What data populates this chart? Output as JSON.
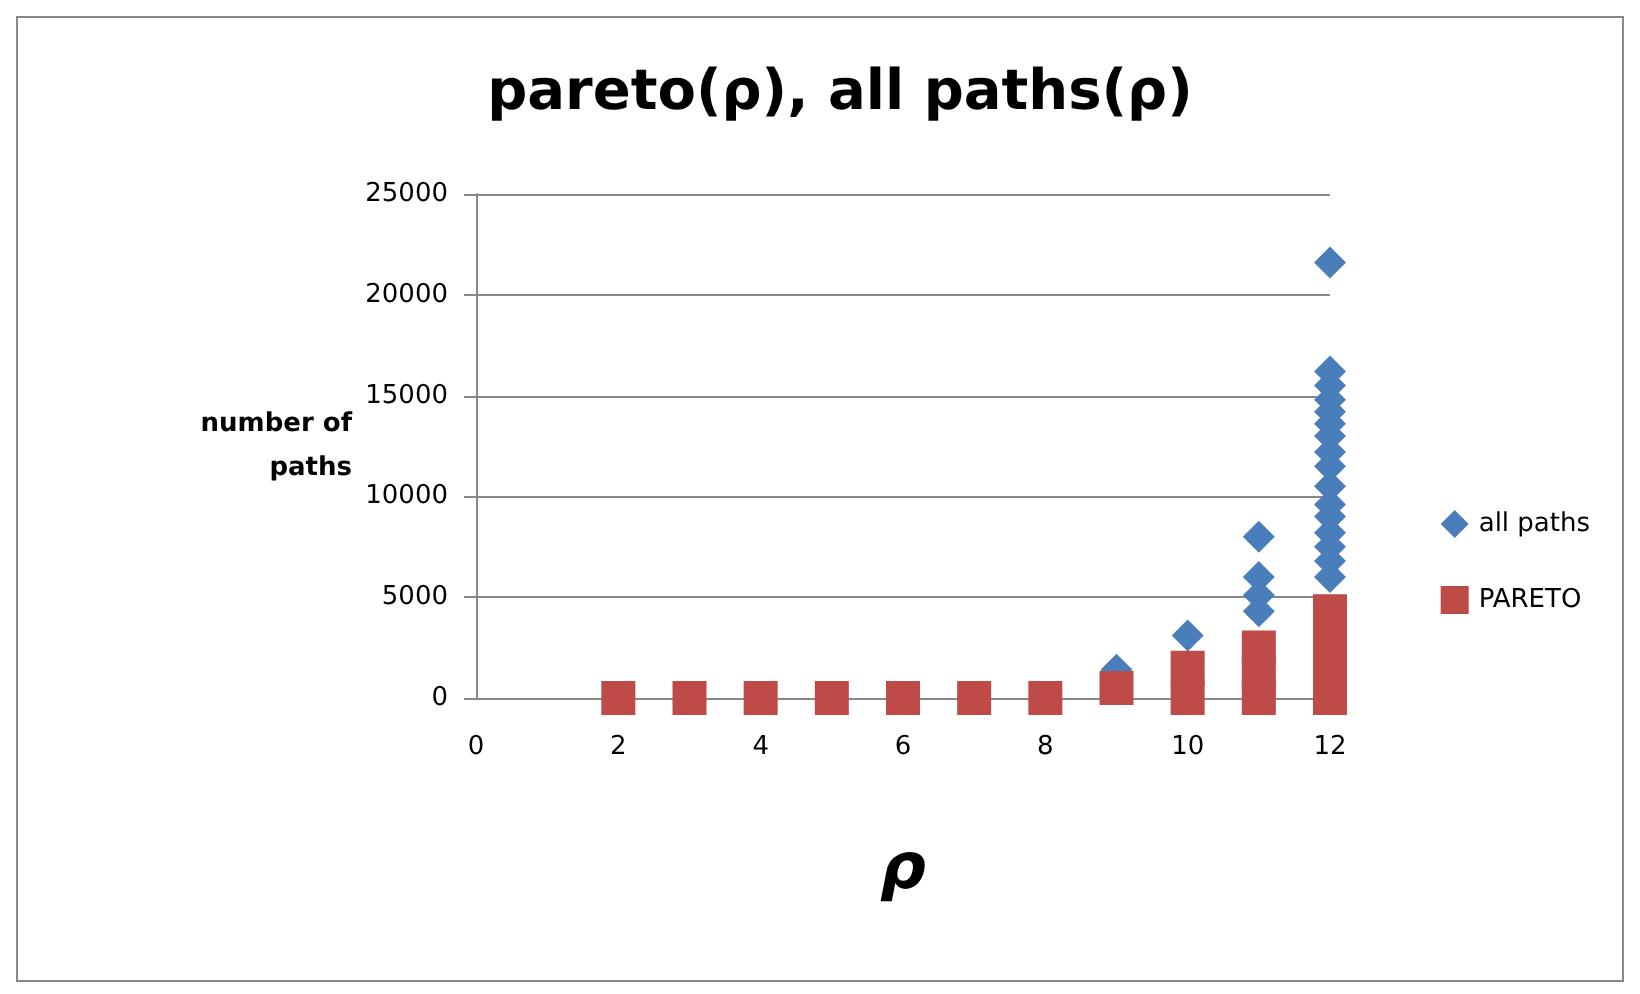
{
  "chart_data": {
    "type": "scatter",
    "title": "pareto(ρ), all paths(ρ)",
    "xlabel": "ρ",
    "ylabel": "number of paths",
    "xlim": [
      0,
      12
    ],
    "xticks": [
      0,
      2,
      4,
      6,
      8,
      10,
      12
    ],
    "ylim": [
      0,
      25000
    ],
    "yticks": [
      0,
      5000,
      10000,
      15000,
      20000,
      25000
    ],
    "grid": "y",
    "legend": "right",
    "series": [
      {
        "name": "all paths",
        "color": "#4a7ebb",
        "marker": "diamond",
        "x": [
          9,
          10,
          11,
          11,
          11,
          11,
          12,
          12,
          12,
          12,
          12,
          12,
          12,
          12,
          12,
          12,
          12,
          12,
          12,
          12,
          12,
          12
        ],
        "values": [
          1400,
          3100,
          4300,
          5100,
          6000,
          8000,
          6000,
          6800,
          7500,
          8200,
          9000,
          9600,
          10500,
          11500,
          12200,
          13000,
          13600,
          14200,
          14800,
          15500,
          16200,
          21600
        ]
      },
      {
        "name": "PARETO",
        "color": "#be4b48",
        "marker": "square",
        "x": [
          2,
          3,
          4,
          5,
          6,
          7,
          8,
          9,
          10,
          10,
          11,
          11,
          11,
          12,
          12,
          12,
          12
        ],
        "values": [
          0,
          0,
          0,
          0,
          0,
          0,
          0,
          500,
          0,
          1500,
          0,
          1200,
          2500,
          0,
          1500,
          3000,
          4300
        ]
      }
    ]
  }
}
